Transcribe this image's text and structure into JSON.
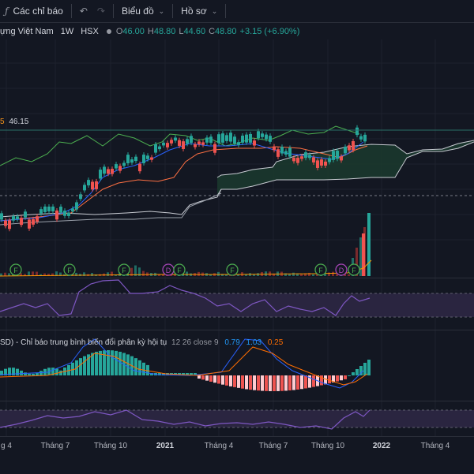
{
  "toolbar": {
    "indicators_label": "Các chỉ báo",
    "chart_label": "Biểu đồ",
    "profile_label": "Hồ sơ"
  },
  "legend": {
    "symbol_name": "ựng Việt Nam",
    "interval": "1W",
    "exchange": "HSX",
    "open_key": "O",
    "open": "46.00",
    "high_key": "H",
    "high": "48.80",
    "low_key": "L",
    "low": "44.60",
    "close_key": "C",
    "close": "48.80",
    "change": "+3.15 (+6.90%)"
  },
  "value_label": {
    "prefix": "5",
    "value": "46.15"
  },
  "macd_legend": {
    "name": "SD) - Chỉ báo trung bình biến đổi phân kỳ hội tụ",
    "params": "12 26 close 9",
    "macd": "0.79",
    "signal": "1.03",
    "hist": "0.25"
  },
  "event_markers": [
    "F",
    "F",
    "F",
    "D",
    "F",
    "F",
    "F",
    "D",
    "F"
  ],
  "x_axis": [
    {
      "label": "g 4",
      "year": false
    },
    {
      "label": "Tháng 7",
      "year": false
    },
    {
      "label": "Tháng 10",
      "year": false
    },
    {
      "label": "2021",
      "year": true
    },
    {
      "label": "Tháng 4",
      "year": false
    },
    {
      "label": "Tháng 7",
      "year": false
    },
    {
      "label": "Tháng 10",
      "year": false
    },
    {
      "label": "2022",
      "year": true
    },
    {
      "label": "Tháng 4",
      "year": false
    }
  ],
  "colors": {
    "background": "#131722",
    "up": "#26a69a",
    "down": "#ef5350",
    "rsi_band": "#2a2540",
    "rsi_line": "#7e57c2",
    "event_green": "#4caf50",
    "event_purple": "#ab47bc"
  }
}
